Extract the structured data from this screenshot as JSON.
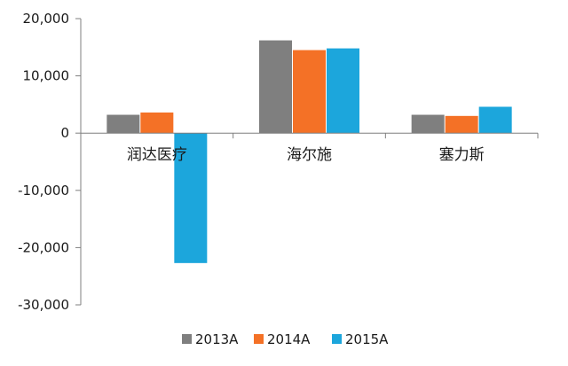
{
  "chart_data": {
    "type": "bar",
    "categories": [
      "润达医疗",
      "海尔施",
      "塞力斯"
    ],
    "series": [
      {
        "name": "2013A",
        "color": "#7f7f7f",
        "values": [
          3200,
          16200,
          3200
        ]
      },
      {
        "name": "2014A",
        "color": "#f47126",
        "values": [
          3600,
          14500,
          3000
        ]
      },
      {
        "name": "2015A",
        "color": "#1ca6dc",
        "values": [
          -22700,
          14800,
          4600
        ]
      }
    ],
    "ylim": [
      -30000,
      20000
    ],
    "yticks": [
      20000,
      10000,
      0,
      -10000,
      -20000,
      -30000
    ],
    "ytick_labels": [
      "20,000",
      "10,000",
      "0",
      "-10,000",
      "-20,000",
      "-30,000"
    ],
    "grid": false,
    "legend_position": "bottom"
  }
}
